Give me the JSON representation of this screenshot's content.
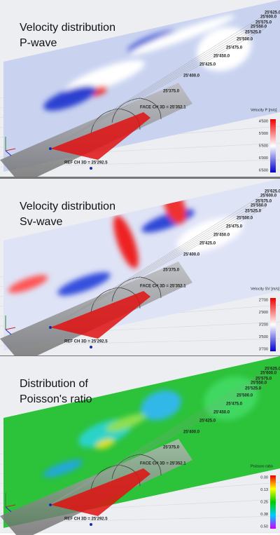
{
  "panels": [
    {
      "title": [
        "Velocity distribution",
        "P-wave"
      ],
      "chainages": [
        "25'375.0",
        "25'400.0",
        "25'425.0",
        "25'450.0",
        "25'475.0",
        "25'500.0",
        "25'525.0",
        "25'550.0",
        "25'575.0",
        "25'600.0",
        "25'625.0"
      ],
      "face": "FACE CH 3D = 25'352.1",
      "ref": "REF CH 3D = 25'292.5",
      "legend": {
        "title": "Velocity P [m/s]",
        "ticks": [
          "4'500",
          "5'000",
          "5'500",
          "6'000",
          "6'500"
        ]
      }
    },
    {
      "title": [
        "Velocity distribution",
        "Sv-wave"
      ],
      "chainages": [
        "25'375.0",
        "25'400.0",
        "25'425.0",
        "25'450.0",
        "25'475.0",
        "25'500.0",
        "25'525.0",
        "25'550.0",
        "25'575.0",
        "25'600.0",
        "25'625.0"
      ],
      "face": "FACE CH 3D = 25'352.1",
      "ref": "REF CH 3D = 25'292.5",
      "legend": {
        "title": "Velocity SV [m/s]",
        "ticks": [
          "2'700",
          "2'900",
          "3'200",
          "3'500",
          "3'700"
        ]
      }
    },
    {
      "title": [
        "Distribution of",
        "Poisson's ratio"
      ],
      "chainages": [
        "25'375.0",
        "25'400.0",
        "25'425.0",
        "25'450.0",
        "25'475.0",
        "25'500.0",
        "25'525.0",
        "25'550.0",
        "25'575.0",
        "25'600.0",
        "25'625.0"
      ],
      "face": "FACE CH 3D = 25'352.1",
      "ref": "REF CH 3D = 25'292.5",
      "legend": {
        "title": "Poisson ratio",
        "ticks": [
          "0.00",
          "0.13",
          "0.25",
          "0.38",
          "0.50"
        ]
      }
    }
  ]
}
